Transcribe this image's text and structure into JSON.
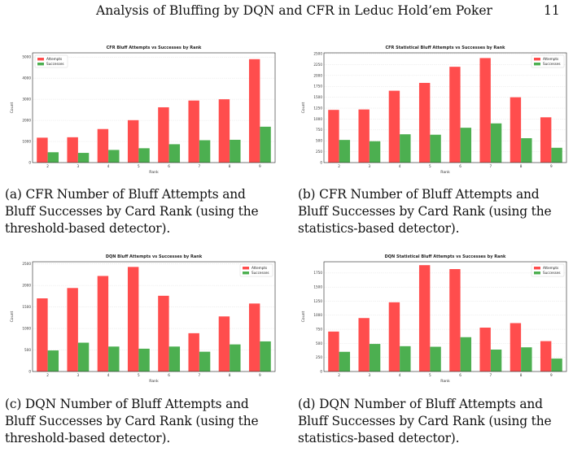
{
  "header": {
    "title": "Analysis of Bluffing by DQN and CFR in Leduc Hold’em Poker",
    "page_number": "11"
  },
  "figures": [
    {
      "caption": "(a) CFR Number of Bluff Attempts and\nBluff Successes by Card Rank (using the\nthreshold-based detector).",
      "chart_data": {
        "type": "bar",
        "title": "CFR Bluff Attempts vs Successes by Rank",
        "xlabel": "Rank",
        "ylabel": "Count",
        "categories": [
          "2",
          "3",
          "4",
          "5",
          "6",
          "7",
          "8",
          "9"
        ],
        "series": [
          {
            "name": "Attempts",
            "color": "#ff4d4d",
            "values": [
              1180,
              1200,
              1590,
              2010,
              2620,
              2940,
              3000,
              4900
            ]
          },
          {
            "name": "Successes",
            "color": "#4caf50",
            "values": [
              490,
              460,
              600,
              680,
              870,
              1060,
              1080,
              1700
            ]
          }
        ],
        "ylim": [
          0,
          5200
        ],
        "yticks": [
          0,
          1000,
          2000,
          3000,
          4000,
          5000
        ],
        "legend": "top-left",
        "grid": true
      }
    },
    {
      "caption": "(b) CFR Number of Bluff Attempts and\nBluff Successes by Card Rank (using the\nstatistics-based detector).",
      "chart_data": {
        "type": "bar",
        "title": "CFR Statistical Bluff Attempts vs Successes by Rank",
        "xlabel": "Rank",
        "ylabel": "Count",
        "categories": [
          "2",
          "3",
          "4",
          "5",
          "6",
          "7",
          "8",
          "9"
        ],
        "series": [
          {
            "name": "Attempts",
            "color": "#ff4d4d",
            "values": [
              1210,
              1220,
              1650,
              1830,
              2200,
              2400,
              1500,
              1040
            ]
          },
          {
            "name": "Successes",
            "color": "#4caf50",
            "values": [
              520,
              490,
              650,
              640,
              800,
              900,
              560,
              340
            ]
          }
        ],
        "ylim": [
          0,
          2520
        ],
        "yticks": [
          0,
          250,
          500,
          750,
          1000,
          1250,
          1500,
          1750,
          2000,
          2250,
          2500
        ],
        "legend": "top-right",
        "grid": true
      }
    },
    {
      "caption": "(c) DQN Number of Bluff Attempts and\nBluff Successes by Card Rank (using the\nthreshold-based detector).",
      "chart_data": {
        "type": "bar",
        "title": "DQN Bluff Attempts vs Successes by Rank",
        "xlabel": "Rank",
        "ylabel": "Count",
        "categories": [
          "2",
          "3",
          "4",
          "5",
          "6",
          "7",
          "8",
          "9"
        ],
        "series": [
          {
            "name": "Attempts",
            "color": "#ff4d4d",
            "values": [
              1700,
              1940,
              2220,
              2430,
              1760,
              890,
              1280,
              1580
            ]
          },
          {
            "name": "Successes",
            "color": "#4caf50",
            "values": [
              490,
              670,
              580,
              530,
              580,
              460,
              630,
              700
            ]
          }
        ],
        "ylim": [
          0,
          2550
        ],
        "yticks": [
          0,
          500,
          1000,
          1500,
          2000,
          2500
        ],
        "legend": "top-right",
        "grid": true
      }
    },
    {
      "caption": "(d) DQN Number of Bluff Attempts and\nBluff Successes by Card Rank (using the\nstatistics-based detector).",
      "chart_data": {
        "type": "bar",
        "title": "DQN Statistical Bluff Attempts vs Successes by Rank",
        "xlabel": "Rank",
        "ylabel": "Count",
        "categories": [
          "2",
          "3",
          "4",
          "5",
          "6",
          "7",
          "8",
          "9"
        ],
        "series": [
          {
            "name": "Attempts",
            "color": "#ff4d4d",
            "values": [
              710,
              950,
              1230,
              1890,
              1820,
              780,
              860,
              540
            ]
          },
          {
            "name": "Successes",
            "color": "#4caf50",
            "values": [
              350,
              490,
              450,
              440,
              610,
              390,
              430,
              230
            ]
          }
        ],
        "ylim": [
          0,
          1950
        ],
        "yticks": [
          0,
          250,
          500,
          750,
          1000,
          1250,
          1500,
          1750
        ],
        "legend": "top-right",
        "grid": true
      }
    }
  ]
}
